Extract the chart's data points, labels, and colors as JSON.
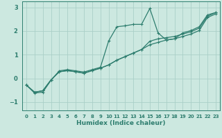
{
  "xlabel": "Humidex (Indice chaleur)",
  "bg_color": "#cce8e0",
  "grid_color": "#aacfc8",
  "line_color": "#2d7d6e",
  "xlim": [
    -0.5,
    23.5
  ],
  "ylim": [
    -1.35,
    3.25
  ],
  "yticks": [
    -1,
    0,
    1,
    2,
    3
  ],
  "xticks": [
    0,
    1,
    2,
    3,
    4,
    5,
    6,
    7,
    8,
    9,
    10,
    11,
    12,
    13,
    14,
    15,
    16,
    17,
    18,
    19,
    20,
    21,
    22,
    23
  ],
  "line1_x": [
    0,
    1,
    2,
    3,
    4,
    5,
    6,
    7,
    8,
    9,
    10,
    11,
    12,
    13,
    14,
    15,
    16,
    17,
    18,
    19,
    20,
    21,
    22,
    23
  ],
  "line1_y": [
    -0.28,
    -0.62,
    -0.58,
    -0.08,
    0.32,
    0.37,
    0.32,
    0.27,
    0.37,
    0.47,
    1.58,
    2.18,
    2.22,
    2.28,
    2.28,
    2.95,
    1.92,
    1.62,
    1.67,
    1.92,
    2.02,
    2.18,
    2.68,
    2.78
  ],
  "line2_x": [
    0,
    1,
    2,
    3,
    4,
    5,
    6,
    7,
    8,
    9,
    10,
    11,
    12,
    13,
    14,
    15,
    16,
    17,
    18,
    19,
    20,
    21,
    22,
    23
  ],
  "line2_y": [
    -0.28,
    -0.58,
    -0.52,
    -0.06,
    0.28,
    0.33,
    0.28,
    0.22,
    0.33,
    0.43,
    0.57,
    0.77,
    0.92,
    1.07,
    1.22,
    1.57,
    1.67,
    1.72,
    1.77,
    1.87,
    1.97,
    2.12,
    2.62,
    2.78
  ],
  "line3_x": [
    0,
    1,
    2,
    3,
    4,
    5,
    6,
    7,
    8,
    9,
    10,
    11,
    12,
    13,
    14,
    15,
    16,
    17,
    18,
    19,
    20,
    21,
    22,
    23
  ],
  "line3_y": [
    -0.28,
    -0.58,
    -0.52,
    -0.06,
    0.28,
    0.33,
    0.28,
    0.22,
    0.33,
    0.43,
    0.57,
    0.77,
    0.92,
    1.07,
    1.22,
    1.42,
    1.52,
    1.62,
    1.67,
    1.77,
    1.87,
    2.02,
    2.57,
    2.72
  ]
}
